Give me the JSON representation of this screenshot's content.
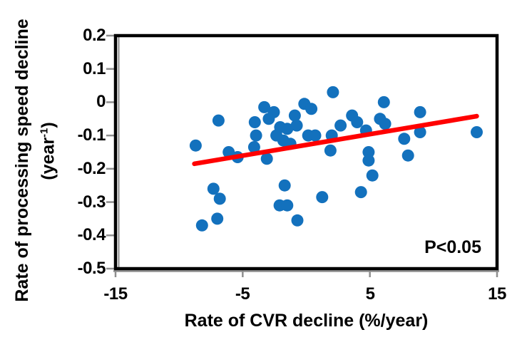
{
  "figure": {
    "background": "#ffffff"
  },
  "chart_data": {
    "type": "scatter",
    "title": "",
    "xlabel": "Rate of CVR decline (%/year)",
    "ylabel_line1": "Rate of processing speed decline",
    "ylabel_unit": {
      "prefix": "(year",
      "sup": "-1",
      "suffix": ")"
    },
    "xlim": [
      -15,
      15
    ],
    "ylim": [
      -0.5,
      0.2
    ],
    "grid": false,
    "legend": "none",
    "x_ticks": [
      {
        "value": -15,
        "label": "-15"
      },
      {
        "value": -5,
        "label": "-5"
      },
      {
        "value": 5,
        "label": "5"
      },
      {
        "value": 15,
        "label": "15"
      }
    ],
    "y_ticks": [
      {
        "value": 0.2,
        "label": "0.2"
      },
      {
        "value": 0.1,
        "label": "0.1"
      },
      {
        "value": 0,
        "label": "0"
      },
      {
        "value": -0.1,
        "label": "-0.1"
      },
      {
        "value": -0.2,
        "label": "-0.2"
      },
      {
        "value": -0.3,
        "label": "-0.3"
      },
      {
        "value": -0.4,
        "label": "-0.4"
      },
      {
        "value": -0.5,
        "label": "-0.5"
      }
    ],
    "points": [
      [
        -8.7,
        -0.13
      ],
      [
        -6.9,
        -0.055
      ],
      [
        -6.1,
        -0.15
      ],
      [
        -5.4,
        -0.165
      ],
      [
        -7.3,
        -0.26
      ],
      [
        -6.8,
        -0.29
      ],
      [
        -8.2,
        -0.37
      ],
      [
        -7.0,
        -0.35
      ],
      [
        -4.05,
        -0.06
      ],
      [
        -3.95,
        -0.1
      ],
      [
        -4.1,
        -0.135
      ],
      [
        -3.3,
        -0.015
      ],
      [
        -2.55,
        -0.03
      ],
      [
        -2.95,
        -0.05
      ],
      [
        -3.1,
        -0.17
      ],
      [
        -2.35,
        -0.1
      ],
      [
        -2.05,
        -0.075
      ],
      [
        -1.5,
        -0.08
      ],
      [
        -1.8,
        -0.115
      ],
      [
        -1.25,
        -0.125
      ],
      [
        -0.9,
        -0.04
      ],
      [
        -0.75,
        -0.07
      ],
      [
        -0.15,
        -0.005
      ],
      [
        0.4,
        -0.02
      ],
      [
        -1.7,
        -0.25
      ],
      [
        -2.1,
        -0.31
      ],
      [
        -1.5,
        -0.31
      ],
      [
        -0.7,
        -0.355
      ],
      [
        0.15,
        -0.1
      ],
      [
        0.7,
        -0.1
      ],
      [
        2.0,
        -0.1
      ],
      [
        1.9,
        -0.145
      ],
      [
        2.7,
        -0.07
      ],
      [
        3.6,
        -0.04
      ],
      [
        4.0,
        -0.06
      ],
      [
        4.7,
        -0.085
      ],
      [
        2.1,
        0.03
      ],
      [
        1.25,
        -0.285
      ],
      [
        4.9,
        -0.15
      ],
      [
        4.9,
        -0.175
      ],
      [
        5.2,
        -0.22
      ],
      [
        4.3,
        -0.27
      ],
      [
        6.1,
        0.0
      ],
      [
        5.8,
        -0.05
      ],
      [
        6.2,
        -0.065
      ],
      [
        7.7,
        -0.11
      ],
      [
        8.95,
        -0.03
      ],
      [
        8.95,
        -0.09
      ],
      [
        8.0,
        -0.16
      ],
      [
        13.4,
        -0.09
      ]
    ],
    "trend_line": {
      "x1": -8.8,
      "y1": -0.185,
      "x2": 13.4,
      "y2": -0.042
    },
    "annotation": {
      "text": "P<0.05"
    },
    "colors": {
      "point": "#1371bd",
      "trend": "#ff0000",
      "frame": "#000000",
      "axis": "#8f8f8f"
    }
  }
}
